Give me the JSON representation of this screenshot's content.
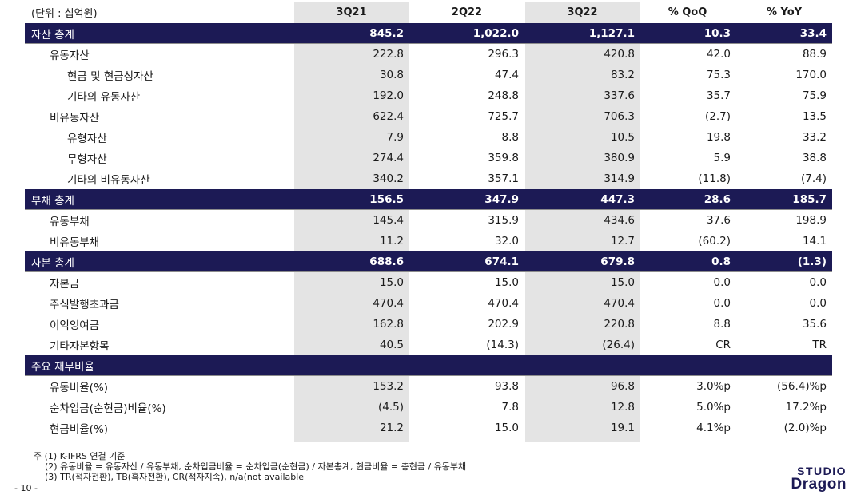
{
  "header": {
    "unit": "(단위 : 십억원)",
    "columns": [
      "3Q21",
      "2Q22",
      "3Q22",
      "% QoQ",
      "% YoY"
    ]
  },
  "rows": [
    {
      "label": "자산 총계",
      "values": [
        "845.2",
        "1,022.0",
        "1,127.1",
        "10.3",
        "33.4"
      ]
    },
    {
      "label": "유동자산",
      "values": [
        "222.8",
        "296.3",
        "420.8",
        "42.0",
        "88.9"
      ]
    },
    {
      "label": "현금 및 현금성자산",
      "values": [
        "30.8",
        "47.4",
        "83.2",
        "75.3",
        "170.0"
      ]
    },
    {
      "label": "기타의 유동자산",
      "values": [
        "192.0",
        "248.8",
        "337.6",
        "35.7",
        "75.9"
      ]
    },
    {
      "label": "비유동자산",
      "values": [
        "622.4",
        "725.7",
        "706.3",
        "(2.7)",
        "13.5"
      ]
    },
    {
      "label": "유형자산",
      "values": [
        "7.9",
        "8.8",
        "10.5",
        "19.8",
        "33.2"
      ]
    },
    {
      "label": "무형자산",
      "values": [
        "274.4",
        "359.8",
        "380.9",
        "5.9",
        "38.8"
      ]
    },
    {
      "label": "기타의 비유동자산",
      "values": [
        "340.2",
        "357.1",
        "314.9",
        "(11.8)",
        "(7.4)"
      ]
    },
    {
      "label": "부채 총계",
      "values": [
        "156.5",
        "347.9",
        "447.3",
        "28.6",
        "185.7"
      ]
    },
    {
      "label": "유동부채",
      "values": [
        "145.4",
        "315.9",
        "434.6",
        "37.6",
        "198.9"
      ]
    },
    {
      "label": "비유동부채",
      "values": [
        "11.2",
        "32.0",
        "12.7",
        "(60.2)",
        "14.1"
      ]
    },
    {
      "label": "자본 총계",
      "values": [
        "688.6",
        "674.1",
        "679.8",
        "0.8",
        "(1.3)"
      ]
    },
    {
      "label": "자본금",
      "values": [
        "15.0",
        "15.0",
        "15.0",
        "0.0",
        "0.0"
      ]
    },
    {
      "label": "주식발행초과금",
      "values": [
        "470.4",
        "470.4",
        "470.4",
        "0.0",
        "0.0"
      ]
    },
    {
      "label": "이익잉여금",
      "values": [
        "162.8",
        "202.9",
        "220.8",
        "8.8",
        "35.6"
      ]
    },
    {
      "label": "기타자본항목",
      "values": [
        "40.5",
        "(14.3)",
        "(26.4)",
        "CR",
        "TR"
      ]
    },
    {
      "label": "주요 재무비율",
      "values": []
    },
    {
      "label": "유동비율(%)",
      "values": [
        "153.2",
        "93.8",
        "96.8",
        "3.0%p",
        "(56.4)%p"
      ]
    },
    {
      "label": "순차입금(순현금)비율(%)",
      "values": [
        "(4.5)",
        "7.8",
        "12.8",
        "5.0%p",
        "17.2%p"
      ]
    },
    {
      "label": "현금비율(%)",
      "values": [
        "21.2",
        "15.0",
        "19.1",
        "4.1%p",
        "(2.0)%p"
      ]
    }
  ],
  "notes": [
    "주 (1) K-IFRS 연결 기준",
    "(2) 유동비율 = 유동자산 / 유동부채, 순차입금비율 = 순차입금(순현금) / 자본총계, 현금비율 = 총현금 / 유동부채",
    "(3) TR(적자전환), TB(흑자전환), CR(적자지속), n/a(not available"
  ],
  "page_number": "- 10 -",
  "logo": {
    "line1": "STUDIO",
    "line2": "Dragon"
  },
  "colors": {
    "navy": "#1c1a55",
    "grey_column": "#e4e4e4"
  }
}
